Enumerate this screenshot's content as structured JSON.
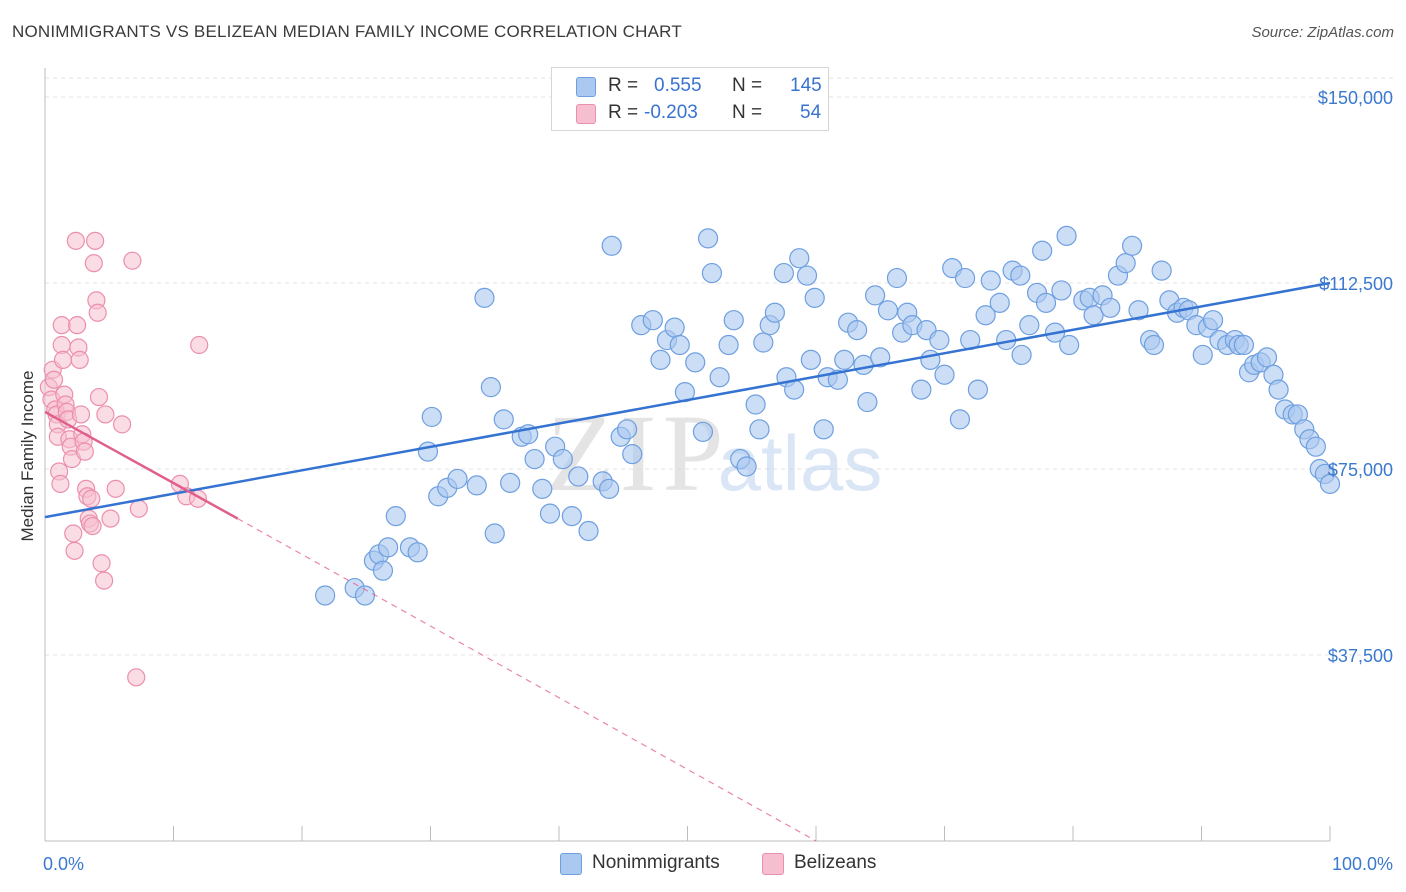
{
  "header": {
    "title": "NONIMMIGRANTS VS BELIZEAN MEDIAN FAMILY INCOME CORRELATION CHART",
    "source": "Source: ZipAtlas.com"
  },
  "legend": {
    "rows": [
      {
        "r_label": "R =",
        "r_value": "0.555",
        "n_label": "N =",
        "n_value": "145"
      },
      {
        "r_label": "R =",
        "r_value": "-0.203",
        "n_label": "N =",
        "n_value": "54"
      }
    ]
  },
  "bottom_legend": {
    "series": [
      {
        "label": "Nonimmigrants"
      },
      {
        "label": "Belizeans"
      }
    ]
  },
  "colors": {
    "blue_fill": "#aac8f0",
    "blue_stroke": "#6e9fe0",
    "blue_line": "#3473d1",
    "pink_fill": "#f6bfd0",
    "pink_stroke": "#ec8fad",
    "pink_line": "#e0608c",
    "axis_text": "#3b79cf",
    "grid": "#e3e3e3"
  },
  "watermark": {
    "zip": "ZIP",
    "atlas": "atlas"
  },
  "chart_data": {
    "type": "scatter",
    "title": "NONIMMIGRANTS VS BELIZEAN MEDIAN FAMILY INCOME CORRELATION CHART",
    "ylabel": "Median Family Income",
    "xlabel": "",
    "xlim": [
      0,
      100
    ],
    "ylim": [
      0,
      155000
    ],
    "x_tick_labels": [
      "0.0%",
      "100.0%"
    ],
    "y_ticks": [
      37500,
      75000,
      112500,
      150000
    ],
    "y_tick_labels": [
      "$37,500",
      "$75,000",
      "$112,500",
      "$150,000"
    ],
    "series": [
      {
        "name": "Nonimmigrants",
        "color": "#aac8f0",
        "R": 0.555,
        "N": 145,
        "trend": {
          "x": [
            0,
            100
          ],
          "y": [
            65300,
            112500
          ]
        },
        "points": [
          [
            21.8,
            49500
          ],
          [
            24.1,
            51000
          ],
          [
            24.9,
            49500
          ],
          [
            25.6,
            56500
          ],
          [
            26.0,
            57800
          ],
          [
            26.3,
            54500
          ],
          [
            26.7,
            59200
          ],
          [
            27.3,
            65500
          ],
          [
            28.4,
            59200
          ],
          [
            29.0,
            58200
          ],
          [
            29.8,
            78500
          ],
          [
            30.1,
            85500
          ],
          [
            30.6,
            69500
          ],
          [
            31.3,
            71200
          ],
          [
            32.1,
            73000
          ],
          [
            33.6,
            71700
          ],
          [
            34.2,
            109500
          ],
          [
            34.7,
            91500
          ],
          [
            35.0,
            62000
          ],
          [
            35.7,
            85000
          ],
          [
            36.2,
            72200
          ],
          [
            37.1,
            81500
          ],
          [
            37.6,
            82000
          ],
          [
            38.1,
            77000
          ],
          [
            38.7,
            71000
          ],
          [
            39.3,
            66000
          ],
          [
            39.7,
            79500
          ],
          [
            40.3,
            77000
          ],
          [
            41.0,
            65500
          ],
          [
            41.5,
            73500
          ],
          [
            42.3,
            62500
          ],
          [
            43.4,
            72500
          ],
          [
            43.9,
            71000
          ],
          [
            44.1,
            120000
          ],
          [
            44.8,
            81500
          ],
          [
            45.3,
            83000
          ],
          [
            45.7,
            78000
          ],
          [
            46.4,
            104000
          ],
          [
            47.3,
            105000
          ],
          [
            47.9,
            97000
          ],
          [
            48.4,
            101000
          ],
          [
            49.0,
            103500
          ],
          [
            49.4,
            100000
          ],
          [
            49.8,
            90500
          ],
          [
            50.6,
            96500
          ],
          [
            51.2,
            82500
          ],
          [
            51.6,
            121500
          ],
          [
            51.9,
            114500
          ],
          [
            52.5,
            93500
          ],
          [
            53.2,
            100000
          ],
          [
            53.6,
            105000
          ],
          [
            54.1,
            77000
          ],
          [
            54.6,
            75500
          ],
          [
            55.3,
            88000
          ],
          [
            55.6,
            83000
          ],
          [
            55.9,
            100500
          ],
          [
            56.4,
            104000
          ],
          [
            56.8,
            106500
          ],
          [
            57.5,
            114500
          ],
          [
            57.7,
            93500
          ],
          [
            58.3,
            91000
          ],
          [
            58.7,
            117500
          ],
          [
            59.3,
            114000
          ],
          [
            59.6,
            97000
          ],
          [
            59.9,
            109500
          ],
          [
            60.6,
            83000
          ],
          [
            60.9,
            93500
          ],
          [
            61.7,
            93000
          ],
          [
            62.2,
            97000
          ],
          [
            62.5,
            104500
          ],
          [
            63.2,
            103000
          ],
          [
            63.7,
            96000
          ],
          [
            64.0,
            88500
          ],
          [
            64.6,
            110000
          ],
          [
            65.0,
            97500
          ],
          [
            65.6,
            107000
          ],
          [
            66.3,
            113500
          ],
          [
            66.7,
            102500
          ],
          [
            67.1,
            106500
          ],
          [
            67.5,
            104000
          ],
          [
            68.2,
            91000
          ],
          [
            68.6,
            103000
          ],
          [
            68.9,
            97000
          ],
          [
            69.6,
            101000
          ],
          [
            70.0,
            94000
          ],
          [
            70.6,
            115500
          ],
          [
            71.2,
            85000
          ],
          [
            71.6,
            113500
          ],
          [
            72.0,
            101000
          ],
          [
            72.6,
            91000
          ],
          [
            73.2,
            106000
          ],
          [
            73.6,
            113000
          ],
          [
            74.3,
            108500
          ],
          [
            74.8,
            101000
          ],
          [
            75.3,
            115000
          ],
          [
            75.9,
            114000
          ],
          [
            76.0,
            98000
          ],
          [
            76.6,
            104000
          ],
          [
            77.2,
            110500
          ],
          [
            77.6,
            119000
          ],
          [
            77.9,
            108500
          ],
          [
            78.6,
            102500
          ],
          [
            79.1,
            111000
          ],
          [
            79.5,
            122000
          ],
          [
            79.7,
            100000
          ],
          [
            80.8,
            109000
          ],
          [
            81.3,
            109500
          ],
          [
            81.6,
            106000
          ],
          [
            82.3,
            110000
          ],
          [
            82.9,
            107500
          ],
          [
            83.5,
            114000
          ],
          [
            84.1,
            116500
          ],
          [
            84.6,
            120000
          ],
          [
            85.1,
            107000
          ],
          [
            86.0,
            101000
          ],
          [
            86.3,
            100000
          ],
          [
            86.9,
            115000
          ],
          [
            87.5,
            109000
          ],
          [
            88.1,
            106500
          ],
          [
            88.6,
            107500
          ],
          [
            89.0,
            107000
          ],
          [
            89.6,
            104000
          ],
          [
            90.1,
            98000
          ],
          [
            90.5,
            103500
          ],
          [
            90.9,
            105000
          ],
          [
            91.4,
            101000
          ],
          [
            92.0,
            100000
          ],
          [
            92.6,
            101000
          ],
          [
            92.9,
            100000
          ],
          [
            93.3,
            100000
          ],
          [
            93.7,
            94500
          ],
          [
            94.1,
            96000
          ],
          [
            94.6,
            96500
          ],
          [
            95.1,
            97500
          ],
          [
            95.6,
            94000
          ],
          [
            96.0,
            91000
          ],
          [
            96.5,
            87000
          ],
          [
            97.1,
            86000
          ],
          [
            97.5,
            86000
          ],
          [
            98.0,
            83000
          ],
          [
            98.4,
            81000
          ],
          [
            98.9,
            79500
          ],
          [
            99.2,
            75000
          ],
          [
            99.6,
            74000
          ],
          [
            100.0,
            72000
          ]
        ]
      },
      {
        "name": "Belizeans",
        "color": "#f6bfd0",
        "R": -0.203,
        "N": 54,
        "trend": {
          "x": [
            0,
            15
          ],
          "y": [
            86500,
            65000
          ],
          "dashed_to": {
            "x": 60,
            "y": 0
          }
        },
        "points": [
          [
            0.3,
            91500
          ],
          [
            0.5,
            89000
          ],
          [
            0.6,
            95000
          ],
          [
            0.7,
            93000
          ],
          [
            0.8,
            87000
          ],
          [
            0.9,
            86000
          ],
          [
            1.0,
            84000
          ],
          [
            1.0,
            81500
          ],
          [
            1.1,
            74500
          ],
          [
            1.2,
            72000
          ],
          [
            1.3,
            104000
          ],
          [
            1.3,
            100000
          ],
          [
            1.4,
            97000
          ],
          [
            1.5,
            90000
          ],
          [
            1.6,
            88000
          ],
          [
            1.7,
            86500
          ],
          [
            1.8,
            85000
          ],
          [
            1.9,
            81000
          ],
          [
            2.0,
            79500
          ],
          [
            2.1,
            77000
          ],
          [
            2.2,
            62000
          ],
          [
            2.3,
            58500
          ],
          [
            2.4,
            121000
          ],
          [
            2.5,
            104000
          ],
          [
            2.6,
            99500
          ],
          [
            2.7,
            97000
          ],
          [
            2.8,
            86000
          ],
          [
            2.9,
            82000
          ],
          [
            3.0,
            80500
          ],
          [
            3.1,
            78500
          ],
          [
            3.2,
            71000
          ],
          [
            3.3,
            69500
          ],
          [
            3.4,
            65000
          ],
          [
            3.5,
            64000
          ],
          [
            3.6,
            69000
          ],
          [
            3.7,
            63500
          ],
          [
            3.8,
            116500
          ],
          [
            3.9,
            121000
          ],
          [
            4.0,
            109000
          ],
          [
            4.1,
            106500
          ],
          [
            4.2,
            89500
          ],
          [
            4.4,
            56000
          ],
          [
            4.6,
            52500
          ],
          [
            4.7,
            86000
          ],
          [
            5.1,
            65000
          ],
          [
            5.5,
            71000
          ],
          [
            6.0,
            84000
          ],
          [
            6.8,
            117000
          ],
          [
            7.1,
            33000
          ],
          [
            7.3,
            67000
          ],
          [
            10.5,
            72000
          ],
          [
            11.0,
            69500
          ],
          [
            11.9,
            69000
          ],
          [
            12.0,
            100000
          ]
        ]
      }
    ]
  }
}
